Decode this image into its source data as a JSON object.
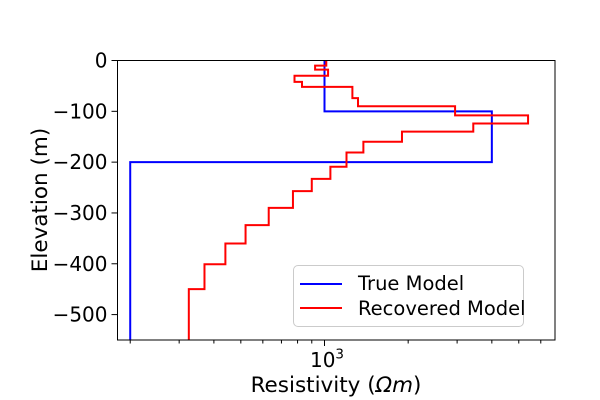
{
  "figure": {
    "background": "#ffffff"
  },
  "chart_data": {
    "type": "line",
    "subtype": "step-sounding-model",
    "title": "",
    "xlabel": "Resistivity (Ωm)",
    "xlabel_parts": {
      "prefix": "Resistivity (",
      "math": "Ωm",
      "suffix": ")"
    },
    "ylabel": "Elevation (m)",
    "x_scale": "log",
    "y_scale": "linear",
    "xlim": [
      180,
      6750
    ],
    "ylim": [
      -550,
      0
    ],
    "grid": false,
    "x_major_ticks": [
      1000
    ],
    "x_major_tick_label": {
      "base": "10",
      "exp": "3"
    },
    "x_minor_ticks": [
      200,
      300,
      400,
      500,
      600,
      700,
      800,
      900,
      2000,
      3000,
      4000,
      5000,
      6000
    ],
    "y_ticks": [
      0,
      -100,
      -200,
      -300,
      -400,
      -500
    ],
    "y_tick_labels": [
      "0",
      "−100",
      "−200",
      "−300",
      "−400",
      "−500"
    ],
    "axis_color": "#000000",
    "legend": {
      "position": "lower center-right",
      "border_color": "#cbcbcb",
      "entries": [
        "True Model",
        "Recovered Model"
      ]
    },
    "series": [
      {
        "name": "True Model",
        "color": "#0000ff",
        "line_width": 2,
        "layer_boundaries_m": [
          0,
          -100,
          -200,
          -550
        ],
        "resistivities_ohm_m": [
          1000,
          4000,
          200
        ]
      },
      {
        "name": "Recovered Model",
        "color": "#ff0000",
        "line_width": 2,
        "layer_boundaries_m": [
          0,
          -10,
          -18,
          -30,
          -42,
          -52,
          -74,
          -90,
          -108,
          -124,
          -140,
          -160,
          -181,
          -209,
          -233,
          -257,
          -290,
          -324,
          -360,
          -401,
          -450,
          -550
        ],
        "resistivities_ohm_m": [
          1015,
          925,
          1030,
          780,
          830,
          1260,
          1320,
          2950,
          5400,
          3430,
          1900,
          1380,
          1200,
          1050,
          900,
          770,
          630,
          520,
          440,
          370,
          325
        ]
      }
    ]
  }
}
